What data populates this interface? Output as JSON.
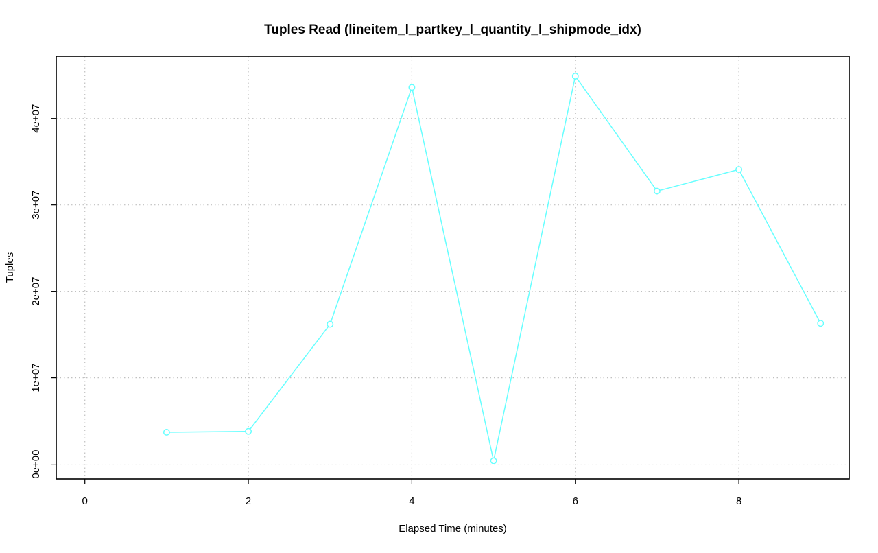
{
  "chart_data": {
    "type": "line",
    "title": "Tuples Read (lineitem_l_partkey_l_quantity_l_shipmode_idx)",
    "xlabel": "Elapsed Time (minutes)",
    "ylabel": "Tuples",
    "xlim": [
      -0.35,
      9.35
    ],
    "ylim": [
      -1700000,
      47200000
    ],
    "x_ticks": [
      0,
      2,
      4,
      6,
      8
    ],
    "x_tick_labels": [
      "0",
      "2",
      "4",
      "6",
      "8"
    ],
    "y_ticks": [
      0,
      10000000,
      20000000,
      30000000,
      40000000
    ],
    "y_tick_labels": [
      "0e+00",
      "1e+07",
      "2e+07",
      "3e+07",
      "4e+07"
    ],
    "grid": true,
    "color": "#66ffff",
    "x": [
      1,
      2,
      3,
      4,
      5,
      6,
      7,
      8,
      9
    ],
    "values": [
      3700000,
      3800000,
      16200000,
      43600000,
      400000,
      44900000,
      31600000,
      34100000,
      16300000
    ]
  }
}
